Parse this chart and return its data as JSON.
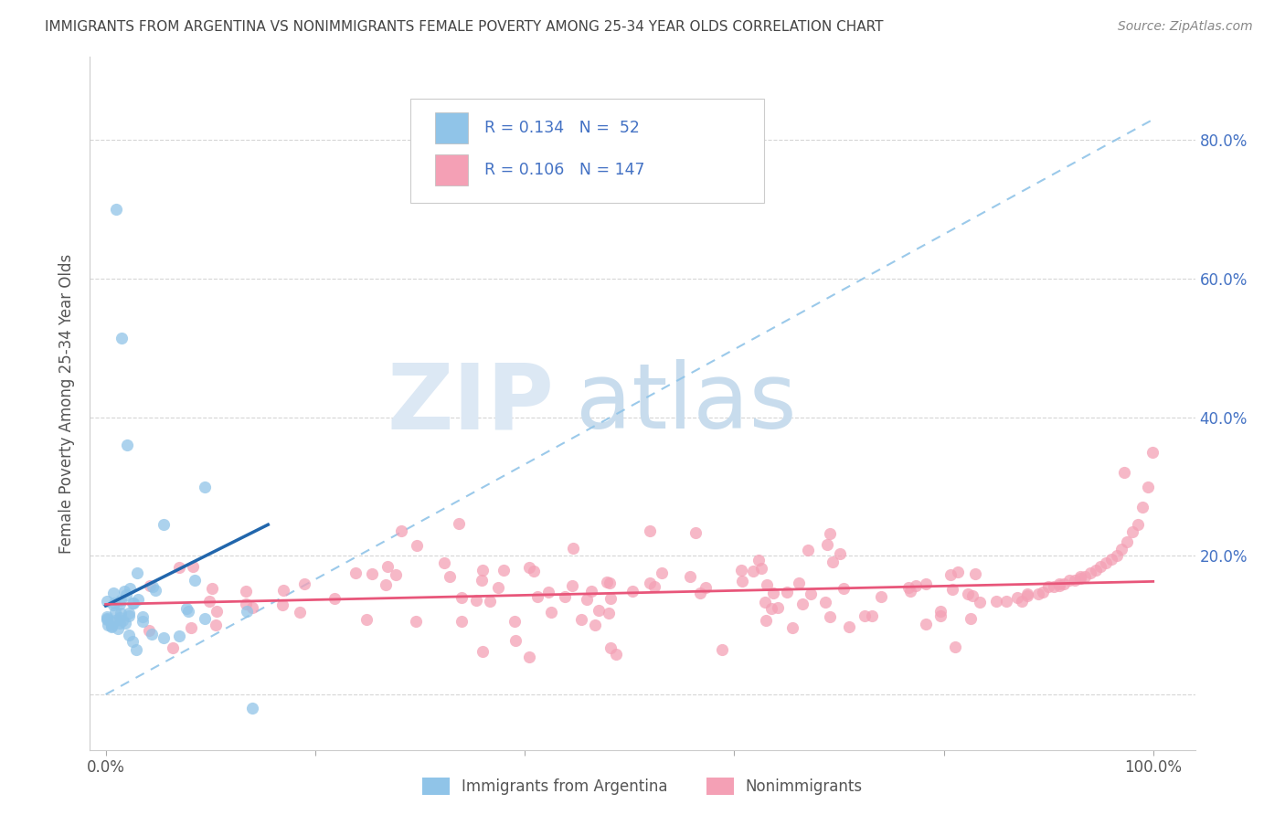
{
  "title": "IMMIGRANTS FROM ARGENTINA VS NONIMMIGRANTS FEMALE POVERTY AMONG 25-34 YEAR OLDS CORRELATION CHART",
  "source": "Source: ZipAtlas.com",
  "ylabel": "Female Poverty Among 25-34 Year Olds",
  "legend1_R": "0.134",
  "legend1_N": "52",
  "legend2_R": "0.106",
  "legend2_N": "147",
  "blue_color": "#90c4e8",
  "pink_color": "#f4a0b5",
  "blue_line_color": "#2166ac",
  "pink_line_color": "#e8567a",
  "dashed_line_color": "#90c4e8",
  "tick_label_color": "#4472c4",
  "title_color": "#444444",
  "source_color": "#888888",
  "watermark_zip_color": "#dce8f4",
  "watermark_atlas_color": "#c8dced",
  "y_axis_max": 0.85,
  "xlim_max": 1.04,
  "ylim_min": -0.08
}
